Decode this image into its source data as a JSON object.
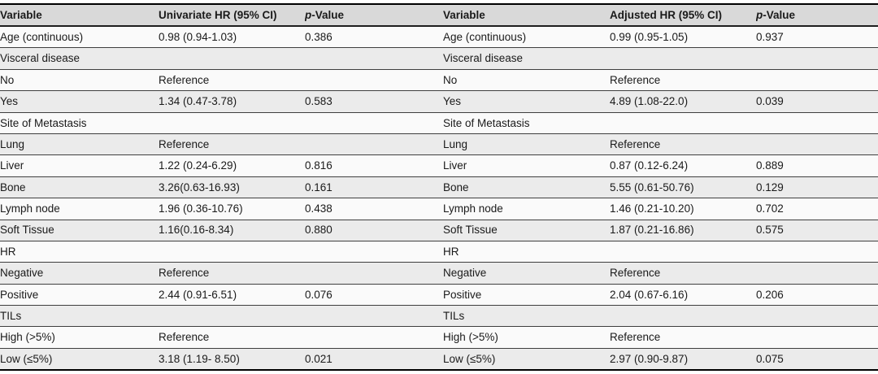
{
  "table": {
    "headers": {
      "variable_left": "Variable",
      "univariate_hr": "Univariate HR (95% CI)",
      "p_value_italic": "p",
      "p_value_rest": "-Value",
      "variable_right": "Variable",
      "adjusted_hr": "Adjusted HR (95% CI)"
    },
    "rows": [
      [
        "Age (continuous)",
        "0.98 (0.94-1.03)",
        "0.386",
        "Age (continuous)",
        "0.99 (0.95-1.05)",
        "0.937"
      ],
      [
        "Visceral disease",
        "",
        "",
        "Visceral disease",
        "",
        ""
      ],
      [
        "No",
        "Reference",
        "",
        "No",
        "Reference",
        ""
      ],
      [
        "Yes",
        "1.34 (0.47-3.78)",
        "0.583",
        "Yes",
        "4.89 (1.08-22.0)",
        "0.039"
      ],
      [
        "Site of Metastasis",
        "",
        "",
        "Site of Metastasis",
        "",
        ""
      ],
      [
        "Lung",
        "Reference",
        "",
        "Lung",
        "Reference",
        ""
      ],
      [
        "Liver",
        "1.22 (0.24-6.29)",
        "0.816",
        "Liver",
        "0.87 (0.12-6.24)",
        "0.889"
      ],
      [
        "Bone",
        "3.26(0.63-16.93)",
        "0.161",
        "Bone",
        "5.55 (0.61-50.76)",
        "0.129"
      ],
      [
        "Lymph node",
        "1.96 (0.36-10.76)",
        "0.438",
        "Lymph node",
        "1.46 (0.21-10.20)",
        "0.702"
      ],
      [
        "Soft Tissue",
        "1.16(0.16-8.34)",
        "0.880",
        "Soft Tissue",
        "1.87 (0.21-16.86)",
        "0.575"
      ],
      [
        "HR",
        "",
        "",
        "HR",
        "",
        ""
      ],
      [
        "Negative",
        "Reference",
        "",
        "Negative",
        "Reference",
        ""
      ],
      [
        "Positive",
        "2.44 (0.91-6.51)",
        "0.076",
        "Positive",
        "2.04 (0.67-6.16)",
        "0.206"
      ],
      [
        "TILs",
        "",
        "",
        "TILs",
        "",
        ""
      ],
      [
        "High (>5%)",
        "Reference",
        "",
        "High (>5%)",
        "Reference",
        ""
      ],
      [
        "Low (≤5%)",
        "3.18 (1.19- 8.50)",
        "0.021",
        "Low (≤5%)",
        "2.97 (0.90-9.87)",
        "0.075"
      ]
    ],
    "cell_names": [
      "cell-variable",
      "cell-hr-ci",
      "cell-p-value",
      "cell-variable",
      "cell-hr-ci",
      "cell-p-value"
    ]
  },
  "colors": {
    "header_bg": "#d9d9d9",
    "row_bg": "#fafafa",
    "row_alt_bg": "#ebebeb",
    "rule_heavy": "#000000",
    "text": "#1a1a1a"
  }
}
